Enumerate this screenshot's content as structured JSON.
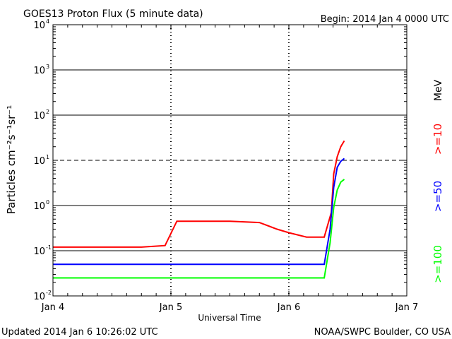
{
  "header": {
    "title": "GOES13 Proton Flux (5 minute data)",
    "begin": "Begin: 2014 Jan 4 0000 UTC"
  },
  "footer": {
    "updated": "Updated 2014 Jan  6 10:26:02 UTC",
    "credit": "NOAA/SWPC Boulder, CO USA"
  },
  "chart_data": {
    "type": "line",
    "title": "GOES13 Proton Flux (5 minute data)",
    "xlabel": "Universal Time",
    "ylabel": "Particles cm⁻²s⁻¹sr⁻¹",
    "xlim_days": [
      0,
      3
    ],
    "x_ticks": [
      "Jan 4",
      "Jan 5",
      "Jan 6",
      "Jan 7"
    ],
    "y_scale": "log",
    "ylim": [
      0.01,
      10000
    ],
    "y_ticks": [
      {
        "value": 0.01,
        "base": "10",
        "exp": "-2"
      },
      {
        "value": 0.1,
        "base": "10",
        "exp": "-1"
      },
      {
        "value": 1,
        "base": "10",
        "exp": "0"
      },
      {
        "value": 10,
        "base": "10",
        "exp": "1"
      },
      {
        "value": 100,
        "base": "10",
        "exp": "2"
      },
      {
        "value": 1000,
        "base": "10",
        "exp": "3"
      },
      {
        "value": 10000,
        "base": "10",
        "exp": "4"
      }
    ],
    "threshold_line": 10,
    "legend_unit": "MeV",
    "series": [
      {
        "name": ">=10",
        "color": "#ff0000",
        "points": [
          [
            0.0,
            0.12
          ],
          [
            0.25,
            0.12
          ],
          [
            0.5,
            0.12
          ],
          [
            0.75,
            0.12
          ],
          [
            0.95,
            0.13
          ],
          [
            1.05,
            0.45
          ],
          [
            1.25,
            0.45
          ],
          [
            1.5,
            0.45
          ],
          [
            1.75,
            0.42
          ],
          [
            1.9,
            0.3
          ],
          [
            2.0,
            0.25
          ],
          [
            2.15,
            0.2
          ],
          [
            2.3,
            0.2
          ],
          [
            2.36,
            0.7
          ],
          [
            2.38,
            5
          ],
          [
            2.41,
            12
          ],
          [
            2.44,
            20
          ],
          [
            2.47,
            27
          ]
        ]
      },
      {
        "name": ">=50",
        "color": "#0000ff",
        "points": [
          [
            0.0,
            0.05
          ],
          [
            0.25,
            0.05
          ],
          [
            0.5,
            0.05
          ],
          [
            0.75,
            0.05
          ],
          [
            1.0,
            0.05
          ],
          [
            1.25,
            0.05
          ],
          [
            1.5,
            0.05
          ],
          [
            1.75,
            0.05
          ],
          [
            2.0,
            0.05
          ],
          [
            2.15,
            0.05
          ],
          [
            2.3,
            0.05
          ],
          [
            2.35,
            0.3
          ],
          [
            2.38,
            2.5
          ],
          [
            2.41,
            7
          ],
          [
            2.44,
            9.5
          ],
          [
            2.47,
            11
          ]
        ]
      },
      {
        "name": ">=100",
        "color": "#00ff00",
        "points": [
          [
            0.0,
            0.025
          ],
          [
            0.25,
            0.025
          ],
          [
            0.5,
            0.025
          ],
          [
            0.75,
            0.025
          ],
          [
            1.0,
            0.025
          ],
          [
            1.25,
            0.025
          ],
          [
            1.5,
            0.025
          ],
          [
            1.75,
            0.025
          ],
          [
            2.0,
            0.025
          ],
          [
            2.15,
            0.025
          ],
          [
            2.3,
            0.025
          ],
          [
            2.35,
            0.15
          ],
          [
            2.38,
            0.9
          ],
          [
            2.41,
            2.2
          ],
          [
            2.44,
            3.3
          ],
          [
            2.47,
            3.8
          ]
        ]
      }
    ],
    "grid": true,
    "legend_position": "right-vertical"
  }
}
